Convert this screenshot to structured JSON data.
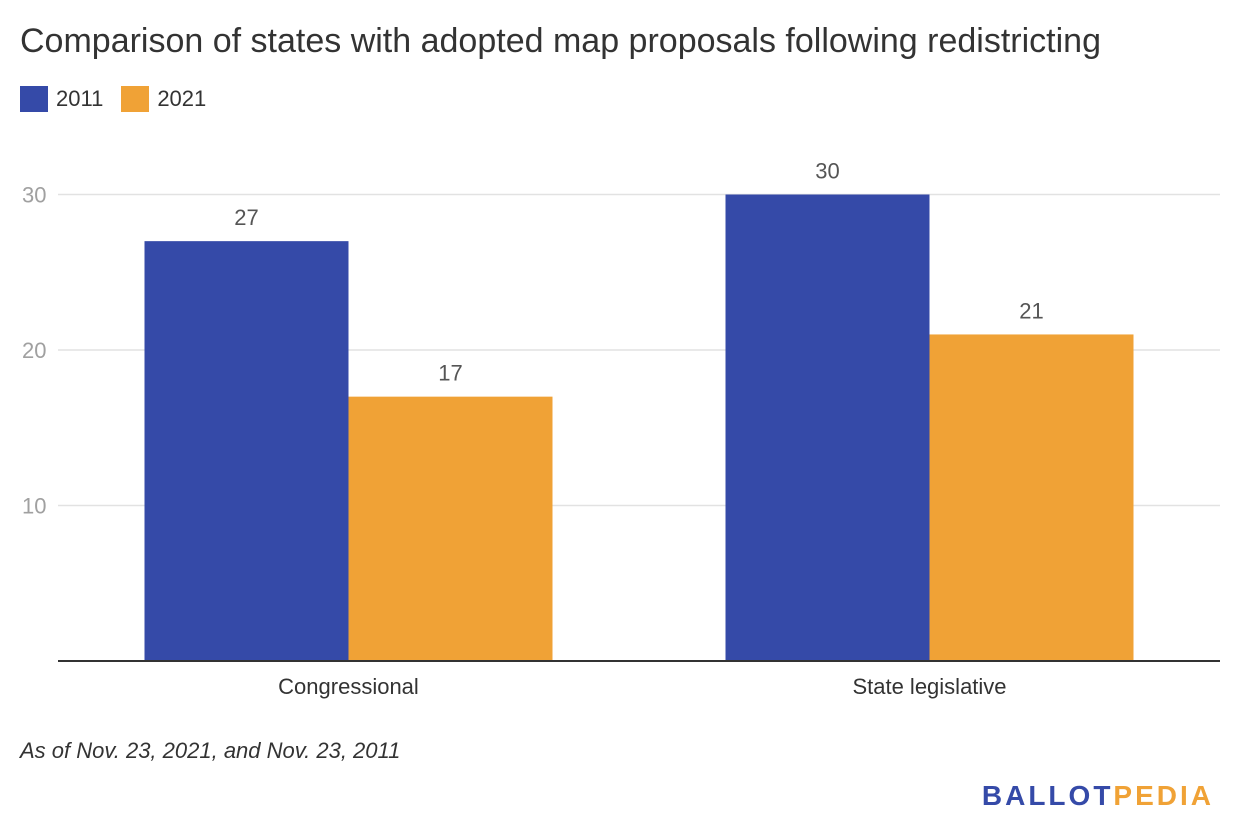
{
  "title": "Comparison of states with adopted map proposals following redistricting",
  "footnote": "As of Nov. 23, 2021, and Nov. 23, 2011",
  "logo": {
    "part1": "BALLOT",
    "part2": "PEDIA",
    "color1": "#354aa8",
    "color2": "#f0a236"
  },
  "chart_data": {
    "type": "bar",
    "title": "Comparison of states with adopted map proposals following redistricting",
    "xlabel": "",
    "ylabel": "",
    "categories": [
      "Congressional",
      "State legislative"
    ],
    "series": [
      {
        "name": "2011",
        "values": [
          27,
          30
        ],
        "color": "#354aa8"
      },
      {
        "name": "2021",
        "values": [
          17,
          21
        ],
        "color": "#f0a236"
      }
    ],
    "yticks": [
      10,
      20,
      30
    ],
    "ylim": [
      0,
      32
    ],
    "grid": true,
    "legend": "top-left",
    "data_labels": true
  }
}
